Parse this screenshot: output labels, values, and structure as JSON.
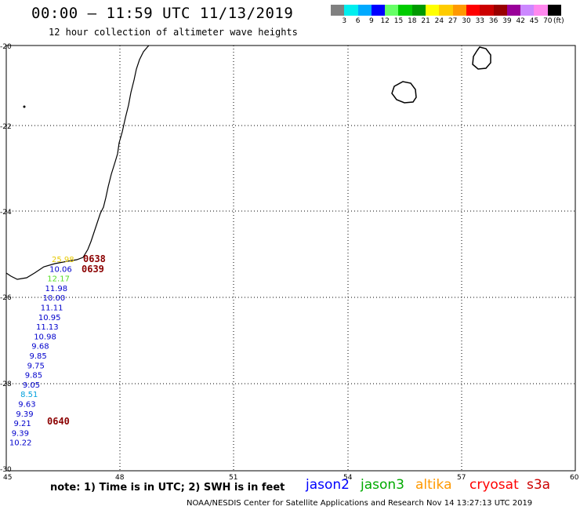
{
  "header": {
    "title": "00:00 – 11:59 UTC 11/13/2019",
    "subtitle": "12 hour collection of altimeter wave heights"
  },
  "colorbar": {
    "colors": [
      "#808080",
      "#00eeee",
      "#00aaff",
      "#0000ff",
      "#66ff66",
      "#00cc00",
      "#009900",
      "#ffff00",
      "#ffcc00",
      "#ff9900",
      "#ff0000",
      "#cc0000",
      "#990000",
      "#990099",
      "#cc88ff",
      "#ff88ee",
      "#000000"
    ],
    "labels": [
      "3",
      "6",
      "9",
      "12",
      "15",
      "18",
      "21",
      "24",
      "27",
      "30",
      "33",
      "36",
      "39",
      "42",
      "45",
      "70"
    ],
    "unit": "(ft)"
  },
  "axes": {
    "lat_labels": [
      "-20",
      "-22",
      "-24",
      "-26",
      "-28",
      "-30"
    ],
    "lon_labels": [
      "45",
      "48",
      "51",
      "54",
      "57",
      "60"
    ]
  },
  "swh_readings": [
    {
      "value": "25.98",
      "color": "#e6c800"
    },
    {
      "value": "10.06",
      "color": "#0000cc"
    },
    {
      "value": "12.17",
      "color": "#55dd22"
    },
    {
      "value": "11.98",
      "color": "#0000cc"
    },
    {
      "value": "10.00",
      "color": "#0000cc"
    },
    {
      "value": "11.11",
      "color": "#0000cc"
    },
    {
      "value": "10.95",
      "color": "#0000cc"
    },
    {
      "value": "11.13",
      "color": "#0000cc"
    },
    {
      "value": "10.98",
      "color": "#0000cc"
    },
    {
      "value": "9.68",
      "color": "#0000cc"
    },
    {
      "value": "9.85",
      "color": "#0000cc"
    },
    {
      "value": "9.75",
      "color": "#0000cc"
    },
    {
      "value": "9.85",
      "color": "#0000cc"
    },
    {
      "value": "9.05",
      "color": "#0000cc"
    },
    {
      "value": "8.51",
      "color": "#00a0dd"
    },
    {
      "value": "9.63",
      "color": "#0000cc"
    },
    {
      "value": "9.39",
      "color": "#0000cc"
    },
    {
      "value": "9.21",
      "color": "#0000cc"
    },
    {
      "value": "9.39",
      "color": "#0000cc"
    },
    {
      "value": "10.22",
      "color": "#0000cc"
    }
  ],
  "time_labels": [
    "0638",
    "0639",
    "0640"
  ],
  "time_color": "#8b0000",
  "footer": {
    "note": "note:  1) Time is in UTC;  2) SWH is in feet",
    "legend": [
      {
        "name": "jason2",
        "color": "#0000ff"
      },
      {
        "name": "jason3",
        "color": "#00aa00"
      },
      {
        "name": "altika",
        "color": "#ff9900"
      },
      {
        "name": "cryosat",
        "color": "#ff0000"
      },
      {
        "name": "s3a",
        "color": "#cc0000"
      }
    ],
    "credit": "NOAA/NESDIS Center for Satellite Applications and Research     Nov 14 13:27:13 UTC 2019"
  }
}
